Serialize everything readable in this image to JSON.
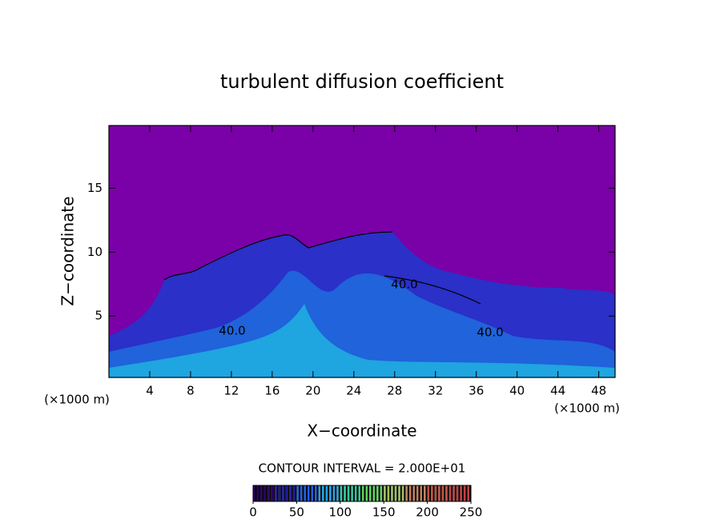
{
  "chart_data": {
    "type": "contour",
    "title": "turbulent diffusion coefficient",
    "xlabel": "X−coordinate",
    "ylabel": "Z−coordinate",
    "xunit": "(×1000 m)",
    "yunit": "(×1000 m)",
    "xlim": [
      0,
      49.6
    ],
    "ylim": [
      0.2,
      19.9
    ],
    "xticks": [
      4,
      8,
      12,
      16,
      20,
      24,
      28,
      32,
      36,
      40,
      44,
      48
    ],
    "yticks": [
      5,
      10,
      15
    ],
    "annotations": [
      "40.0",
      "40.0",
      "40.0"
    ],
    "contour_interval_label": "CONTOUR INTERVAL = 2.000E+01",
    "background_color": "#7a00a8",
    "colorbar": {
      "clim": [
        0,
        250
      ],
      "ticks": [
        0,
        50,
        100,
        150,
        200,
        250
      ],
      "colors": [
        "#2a0060",
        "#1a1aa0",
        "#2060e0",
        "#20a0e0",
        "#30c8a0",
        "#60d060",
        "#a0c060",
        "#c08060",
        "#c05040",
        "#c04040"
      ]
    }
  }
}
